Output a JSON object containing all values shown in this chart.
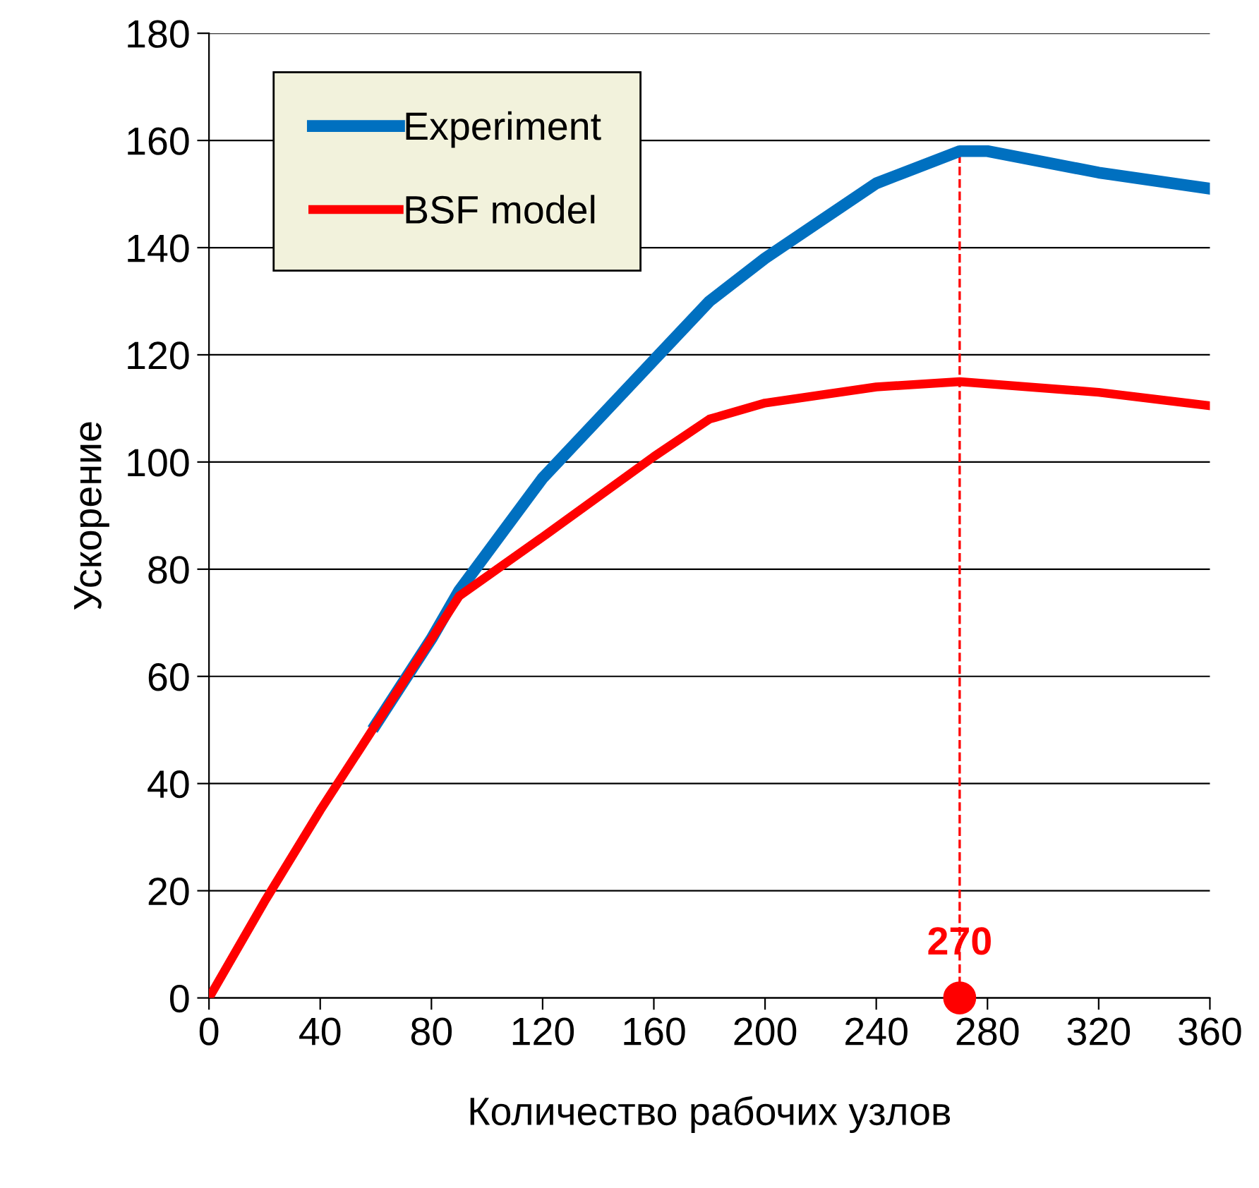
{
  "chart_data": {
    "type": "line",
    "xlabel": "Количество рабочих узлов",
    "ylabel": "Ускорение",
    "series": [
      {
        "name": "Experiment",
        "color": "#0070c0",
        "x": [
          60,
          80,
          90,
          120,
          160,
          180,
          200,
          240,
          270,
          280,
          320,
          360
        ],
        "values": [
          51,
          67,
          76,
          97,
          119,
          130,
          138,
          152,
          158,
          158,
          154,
          151
        ]
      },
      {
        "name": "BSF model",
        "color": "#ff0000",
        "x": [
          0,
          20,
          40,
          60,
          80,
          90,
          120,
          160,
          180,
          200,
          240,
          270,
          320,
          360
        ],
        "values": [
          0,
          18,
          35,
          51,
          67,
          75,
          86,
          101,
          108,
          111,
          114,
          115,
          113,
          110.5
        ]
      },
      {
        "type": "scatter",
        "color": "#ff0000",
        "x": [
          270
        ],
        "values": [
          0
        ]
      }
    ],
    "ref_lines": [
      {
        "axis": "x",
        "value": 270,
        "color": "#ff0000",
        "line_style": "dashed"
      }
    ],
    "annotations": [
      {
        "text": "270",
        "x": 270,
        "y": 0
      }
    ],
    "xlim": [
      0,
      360
    ],
    "xticks": [
      0,
      40,
      80,
      120,
      160,
      200,
      240,
      280,
      320,
      360
    ],
    "ylim": [
      0,
      180
    ],
    "yticks": [
      0,
      20,
      40,
      60,
      80,
      100,
      120,
      140,
      160,
      180
    ],
    "grid": "y",
    "legend": "top left",
    "line_style": "solid"
  }
}
